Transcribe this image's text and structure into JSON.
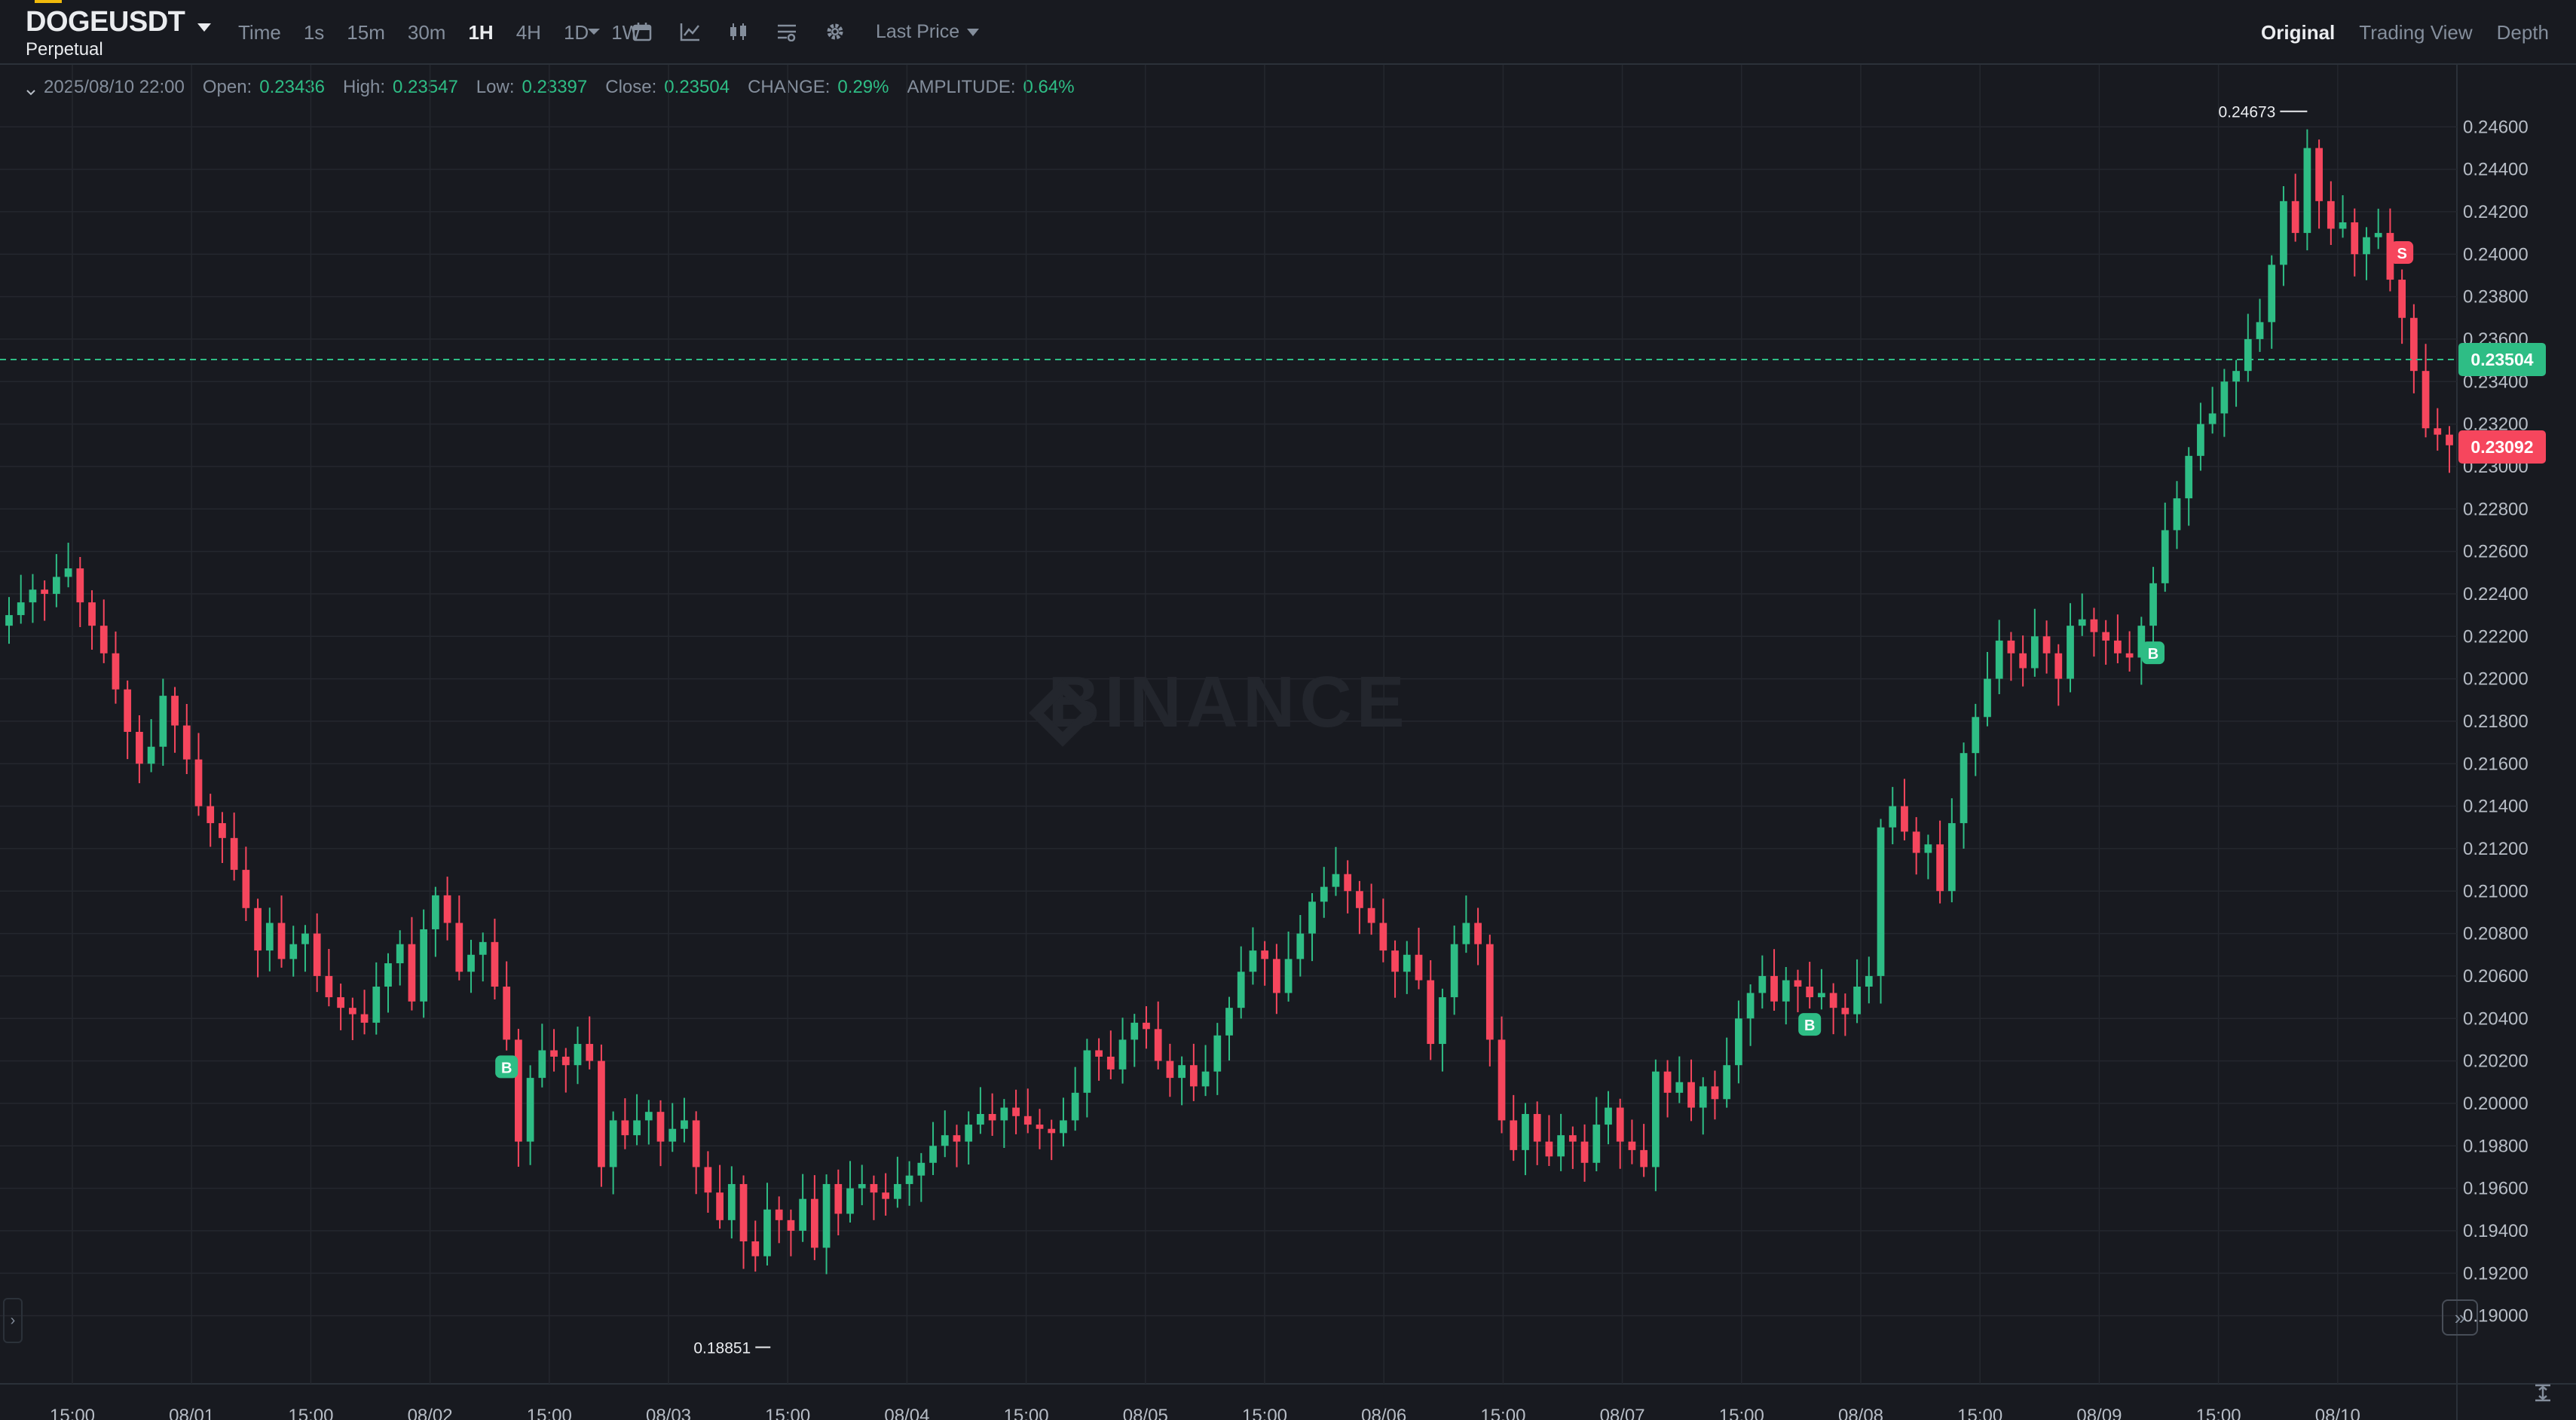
{
  "header": {
    "symbol": "DOGEUSDT",
    "subtitle": "Perpetual",
    "intervals": [
      "Time",
      "1s",
      "15m",
      "30m",
      "1H",
      "4H",
      "1D",
      "1W"
    ],
    "active_interval": "1H",
    "tool_icons": [
      "chevron-down-icon",
      "calendar-icon",
      "indicator-icon",
      "candlestick-type-icon",
      "chart-settings-icon",
      "gear-icon"
    ],
    "price_type": "Last Price",
    "views": [
      "Original",
      "Trading View",
      "Depth"
    ],
    "active_view": "Original"
  },
  "ohlc": {
    "date": "2025/08/10 22:00",
    "open_label": "Open:",
    "open": "0.23436",
    "high_label": "High:",
    "high": "0.23547",
    "low_label": "Low:",
    "low": "0.23397",
    "close_label": "Close:",
    "close": "0.23504",
    "change_label": "CHANGE:",
    "change": "0.29%",
    "amplitude_label": "AMPLITUDE:",
    "amplitude": "0.64%"
  },
  "watermark": "BINANCE",
  "colors": {
    "up": "#2ebd85",
    "down": "#f6465d",
    "background": "#181a20",
    "grid": "#24272e",
    "text": "#b7bdc6"
  },
  "chart_data": {
    "type": "candlestick",
    "y_axis_ticks": [
      "0.24600",
      "0.24400",
      "0.24200",
      "0.24000",
      "0.23800",
      "0.23600",
      "0.23400",
      "0.23200",
      "0.23000",
      "0.22800",
      "0.22600",
      "0.22400",
      "0.22200",
      "0.22000",
      "0.21800",
      "0.21600",
      "0.21400",
      "0.21200",
      "0.21000",
      "0.20800",
      "0.20600",
      "0.20400",
      "0.20200",
      "0.20000",
      "0.19800",
      "0.19600",
      "0.19400",
      "0.19200",
      "0.19000"
    ],
    "ylim": [
      0.1875,
      0.2475
    ],
    "x_axis_ticks": [
      "15:00",
      "08/01",
      "15:00",
      "08/02",
      "15:00",
      "08/03",
      "15:00",
      "08/04",
      "15:00",
      "08/05",
      "15:00",
      "08/06",
      "15:00",
      "08/07",
      "15:00",
      "08/08",
      "15:00",
      "08/09",
      "15:00",
      "08/10"
    ],
    "current_price": "0.23504",
    "mark_price": "0.23092",
    "max_label": "0.24673",
    "min_label": "0.18851",
    "signals": [
      {
        "label": "B",
        "index": 42
      },
      {
        "label": "B",
        "index": 152
      },
      {
        "label": "B",
        "index": 181
      },
      {
        "label": "S",
        "index": 202
      }
    ],
    "closes": [
      0.223,
      0.2236,
      0.2242,
      0.224,
      0.2248,
      0.2252,
      0.2236,
      0.2225,
      0.2212,
      0.2195,
      0.2175,
      0.216,
      0.2168,
      0.2192,
      0.2178,
      0.2162,
      0.214,
      0.2132,
      0.2125,
      0.211,
      0.2092,
      0.2072,
      0.2085,
      0.2068,
      0.2075,
      0.208,
      0.206,
      0.205,
      0.2045,
      0.2042,
      0.2038,
      0.2055,
      0.2066,
      0.2075,
      0.2048,
      0.2082,
      0.2098,
      0.2085,
      0.2062,
      0.207,
      0.2076,
      0.2055,
      0.203,
      0.1982,
      0.2012,
      0.2025,
      0.2022,
      0.2018,
      0.2028,
      0.202,
      0.197,
      0.1992,
      0.1985,
      0.1992,
      0.1996,
      0.1982,
      0.1988,
      0.1992,
      0.197,
      0.1958,
      0.1945,
      0.1962,
      0.1935,
      0.1928,
      0.195,
      0.1945,
      0.194,
      0.1955,
      0.1932,
      0.1962,
      0.1948,
      0.196,
      0.1962,
      0.1958,
      0.1955,
      0.1962,
      0.1966,
      0.1972,
      0.198,
      0.1985,
      0.1982,
      0.199,
      0.1995,
      0.1992,
      0.1998,
      0.1994,
      0.199,
      0.1988,
      0.1986,
      0.1992,
      0.2005,
      0.2025,
      0.2022,
      0.2016,
      0.203,
      0.2038,
      0.2035,
      0.202,
      0.2012,
      0.2018,
      0.2008,
      0.2015,
      0.2032,
      0.2045,
      0.2062,
      0.2072,
      0.2068,
      0.2052,
      0.2068,
      0.208,
      0.2095,
      0.2102,
      0.2108,
      0.21,
      0.2092,
      0.2085,
      0.2072,
      0.2062,
      0.207,
      0.2058,
      0.2028,
      0.205,
      0.2075,
      0.2085,
      0.2075,
      0.203,
      0.1992,
      0.1978,
      0.1995,
      0.1982,
      0.1975,
      0.1985,
      0.1982,
      0.1972,
      0.199,
      0.1998,
      0.1982,
      0.1978,
      0.197,
      0.2015,
      0.2005,
      0.201,
      0.1998,
      0.2008,
      0.2002,
      0.2018,
      0.204,
      0.2052,
      0.206,
      0.2048,
      0.2058,
      0.2055,
      0.205,
      0.2052,
      0.2045,
      0.2042,
      0.2055,
      0.206,
      0.213,
      0.214,
      0.2128,
      0.2118,
      0.2122,
      0.21,
      0.2132,
      0.2165,
      0.2182,
      0.22,
      0.2218,
      0.2212,
      0.2205,
      0.222,
      0.2212,
      0.22,
      0.2225,
      0.2228,
      0.2222,
      0.2218,
      0.2212,
      0.221,
      0.2225,
      0.2245,
      0.227,
      0.2285,
      0.2305,
      0.232,
      0.2325,
      0.234,
      0.2345,
      0.236,
      0.2368,
      0.2395,
      0.2425,
      0.241,
      0.245,
      0.2425,
      0.2412,
      0.2415,
      0.24,
      0.2408,
      0.241,
      0.2388,
      0.237,
      0.2345,
      0.2318,
      0.2315,
      0.231
    ],
    "opens": [
      0.2225,
      0.223,
      0.2236,
      0.2242,
      0.224,
      0.2248,
      0.2252,
      0.2236,
      0.2225,
      0.2212,
      0.2195,
      0.2175,
      0.216,
      0.2168,
      0.2192,
      0.2178,
      0.2162,
      0.214,
      0.2132,
      0.2125,
      0.211,
      0.2092,
      0.2072,
      0.2085,
      0.2068,
      0.2075,
      0.208,
      0.206,
      0.205,
      0.2045,
      0.2042,
      0.2038,
      0.2055,
      0.2066,
      0.2075,
      0.2048,
      0.2082,
      0.2098,
      0.2085,
      0.2062,
      0.207,
      0.2076,
      0.2055,
      0.203,
      0.1982,
      0.2012,
      0.2025,
      0.2022,
      0.2018,
      0.2028,
      0.202,
      0.197,
      0.1992,
      0.1985,
      0.1992,
      0.1996,
      0.1982,
      0.1988,
      0.1992,
      0.197,
      0.1958,
      0.1945,
      0.1962,
      0.1935,
      0.1928,
      0.195,
      0.1945,
      0.194,
      0.1955,
      0.1932,
      0.1962,
      0.1948,
      0.196,
      0.1962,
      0.1958,
      0.1955,
      0.1962,
      0.1966,
      0.1972,
      0.198,
      0.1985,
      0.1982,
      0.199,
      0.1995,
      0.1992,
      0.1998,
      0.1994,
      0.199,
      0.1988,
      0.1986,
      0.1992,
      0.2005,
      0.2025,
      0.2022,
      0.2016,
      0.203,
      0.2038,
      0.2035,
      0.202,
      0.2012,
      0.2018,
      0.2008,
      0.2015,
      0.2032,
      0.2045,
      0.2062,
      0.2072,
      0.2068,
      0.2052,
      0.2068,
      0.208,
      0.2095,
      0.2102,
      0.2108,
      0.21,
      0.2092,
      0.2085,
      0.2072,
      0.2062,
      0.207,
      0.2058,
      0.2028,
      0.205,
      0.2075,
      0.2085,
      0.2075,
      0.203,
      0.1992,
      0.1978,
      0.1995,
      0.1982,
      0.1975,
      0.1985,
      0.1982,
      0.1972,
      0.199,
      0.1998,
      0.1982,
      0.1978,
      0.197,
      0.2015,
      0.2005,
      0.201,
      0.1998,
      0.2008,
      0.2002,
      0.2018,
      0.204,
      0.2052,
      0.206,
      0.2048,
      0.2058,
      0.2055,
      0.205,
      0.2052,
      0.2045,
      0.2042,
      0.2055,
      0.206,
      0.213,
      0.214,
      0.2128,
      0.2118,
      0.2122,
      0.21,
      0.2132,
      0.2165,
      0.2182,
      0.22,
      0.2218,
      0.2212,
      0.2205,
      0.222,
      0.2212,
      0.22,
      0.2225,
      0.2228,
      0.2222,
      0.2218,
      0.2212,
      0.221,
      0.2225,
      0.2245,
      0.227,
      0.2285,
      0.2305,
      0.232,
      0.2325,
      0.234,
      0.2345,
      0.236,
      0.2368,
      0.2395,
      0.2425,
      0.241,
      0.245,
      0.2425,
      0.2412,
      0.2415,
      0.24,
      0.2408,
      0.241,
      0.2388,
      0.237,
      0.2345,
      0.2318,
      0.2315
    ]
  }
}
